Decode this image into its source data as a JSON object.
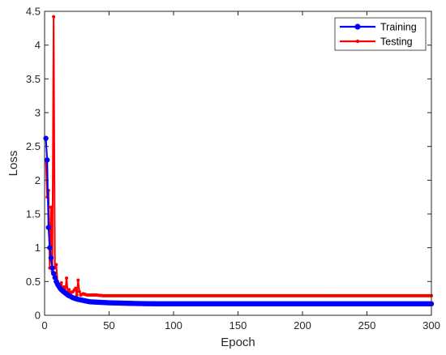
{
  "chart_data": {
    "type": "line",
    "title": "",
    "xlabel": "Epoch",
    "ylabel": "Loss",
    "xlim": [
      0,
      300
    ],
    "ylim": [
      0,
      4.5
    ],
    "xticks": [
      0,
      50,
      100,
      150,
      200,
      250,
      300
    ],
    "yticks": [
      0,
      0.5,
      1,
      1.5,
      2,
      2.5,
      3,
      3.5,
      4,
      4.5
    ],
    "xtick_labels": [
      "0",
      "50",
      "100",
      "150",
      "200",
      "250",
      "300"
    ],
    "ytick_labels": [
      "0",
      "0.5",
      "1",
      "1.5",
      "2",
      "2.5",
      "3",
      "3.5",
      "4",
      "4.5"
    ],
    "grid": false,
    "legend_position": "top-right",
    "series": [
      {
        "name": "Training",
        "color": "#0000ff",
        "marker": "circle-large",
        "x": [
          1,
          2,
          3,
          4,
          5,
          6,
          7,
          8,
          9,
          10,
          12,
          14,
          16,
          18,
          20,
          22,
          25,
          30,
          35,
          40,
          45,
          50,
          60,
          70,
          80,
          90,
          100,
          120,
          150,
          200,
          250,
          300
        ],
        "y": [
          2.62,
          2.3,
          1.3,
          1.0,
          0.85,
          0.7,
          0.62,
          0.56,
          0.5,
          0.46,
          0.4,
          0.36,
          0.33,
          0.3,
          0.28,
          0.26,
          0.24,
          0.22,
          0.2,
          0.195,
          0.19,
          0.185,
          0.18,
          0.175,
          0.172,
          0.17,
          0.17,
          0.17,
          0.17,
          0.17,
          0.17,
          0.17
        ]
      },
      {
        "name": "Testing",
        "color": "#ff0000",
        "marker": "circle-small",
        "x": [
          1,
          2,
          3,
          4,
          5,
          6,
          7,
          8,
          9,
          10,
          11,
          12,
          13,
          14,
          15,
          16,
          17,
          18,
          19,
          20,
          22,
          24,
          25,
          26,
          27,
          28,
          30,
          33,
          36,
          40,
          45,
          50,
          60,
          70,
          80,
          90,
          100,
          120,
          150,
          200,
          250,
          300
        ],
        "y": [
          2.3,
          1.75,
          1.85,
          0.7,
          1.6,
          0.65,
          4.42,
          0.7,
          0.75,
          0.5,
          0.45,
          0.38,
          0.48,
          0.35,
          0.42,
          0.35,
          0.55,
          0.33,
          0.38,
          0.33,
          0.35,
          0.4,
          0.3,
          0.52,
          0.35,
          0.3,
          0.32,
          0.3,
          0.3,
          0.3,
          0.29,
          0.29,
          0.29,
          0.29,
          0.29,
          0.29,
          0.29,
          0.29,
          0.29,
          0.29,
          0.29,
          0.29
        ]
      }
    ]
  }
}
